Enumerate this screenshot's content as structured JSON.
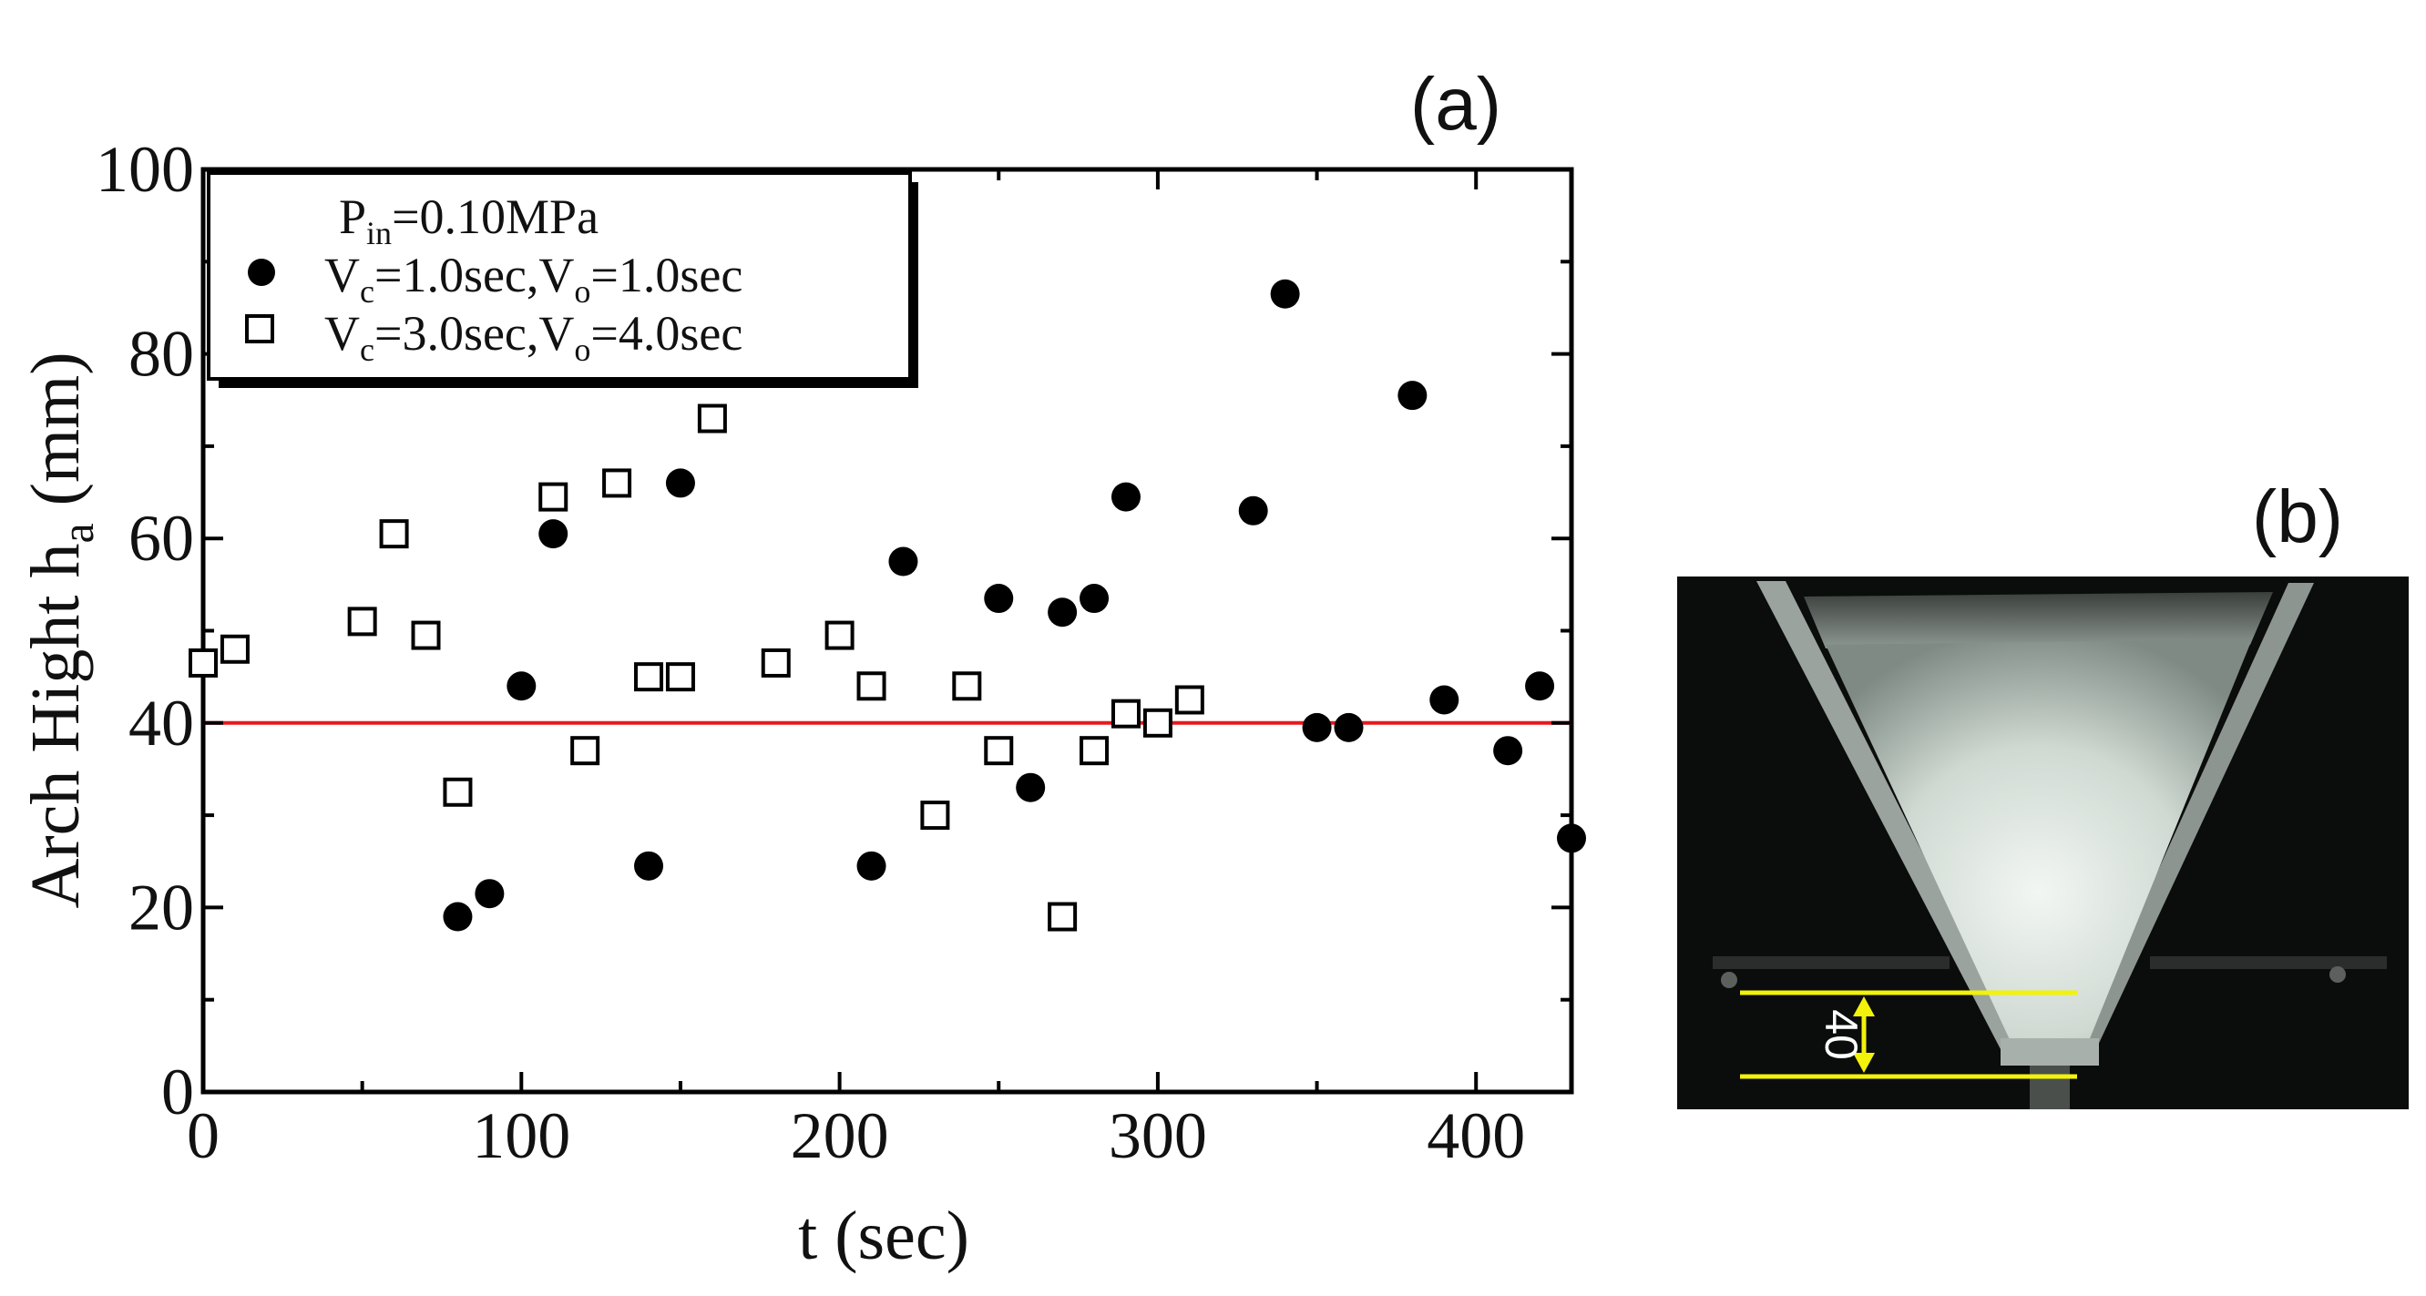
{
  "panel_a": {
    "label": "(a)"
  },
  "panel_b": {
    "label": "(b)",
    "dimension_label": "40"
  },
  "chart_data": {
    "type": "scatter",
    "title": "",
    "xlabel": "t (sec)",
    "ylabel_main": "Arch Hight  h",
    "ylabel_sub": "a",
    "ylabel_unit": " (mm)",
    "xlim": [
      0,
      430
    ],
    "ylim": [
      0,
      100
    ],
    "xticks": [
      0,
      100,
      200,
      300,
      400
    ],
    "yticks": [
      0,
      20,
      40,
      60,
      80,
      100
    ],
    "xtick_labels": [
      "0",
      "100",
      "200",
      "300",
      "400"
    ],
    "ytick_labels": [
      "0",
      "20",
      "40",
      "60",
      "80",
      "100"
    ],
    "reference_line": {
      "y": 40,
      "color": "#e8181e"
    },
    "legend": {
      "header_main": "P",
      "header_sub": "in",
      "header_rest": "=0.10MPa",
      "position": "top-left",
      "entries": [
        {
          "series_index": 0,
          "parts": [
            "V",
            "c",
            "=1.0sec,V",
            "o",
            "=1.0sec"
          ]
        },
        {
          "series_index": 1,
          "parts": [
            "V",
            "c",
            "=3.0sec,V",
            "o",
            "=4.0sec"
          ]
        }
      ]
    },
    "series": [
      {
        "name": "Vc=1.0sec,Vo=1.0sec",
        "marker": "filled-circle",
        "x": [
          80,
          90,
          100,
          110,
          140,
          150,
          210,
          220,
          250,
          260,
          270,
          280,
          290,
          330,
          340,
          350,
          360,
          380,
          390,
          410,
          420,
          430
        ],
        "y": [
          19,
          21.5,
          44,
          60.5,
          24.5,
          66,
          24.5,
          57.5,
          53.5,
          33,
          52,
          53.5,
          64.5,
          63,
          86.5,
          39.5,
          39.5,
          75.5,
          42.5,
          37,
          44,
          27.5
        ]
      },
      {
        "name": "Vc=3.0sec,Vo=4.0sec",
        "marker": "open-square",
        "x": [
          0,
          10,
          50,
          60,
          70,
          80,
          110,
          120,
          130,
          140,
          150,
          160,
          180,
          200,
          210,
          230,
          240,
          250,
          270,
          280,
          290,
          300,
          310
        ],
        "y": [
          46.5,
          48,
          51,
          60.5,
          49.5,
          32.5,
          64.5,
          37,
          66,
          45,
          45,
          73,
          46.5,
          49.5,
          44,
          30,
          44,
          37,
          19,
          37,
          41,
          40,
          42.5
        ]
      }
    ]
  }
}
